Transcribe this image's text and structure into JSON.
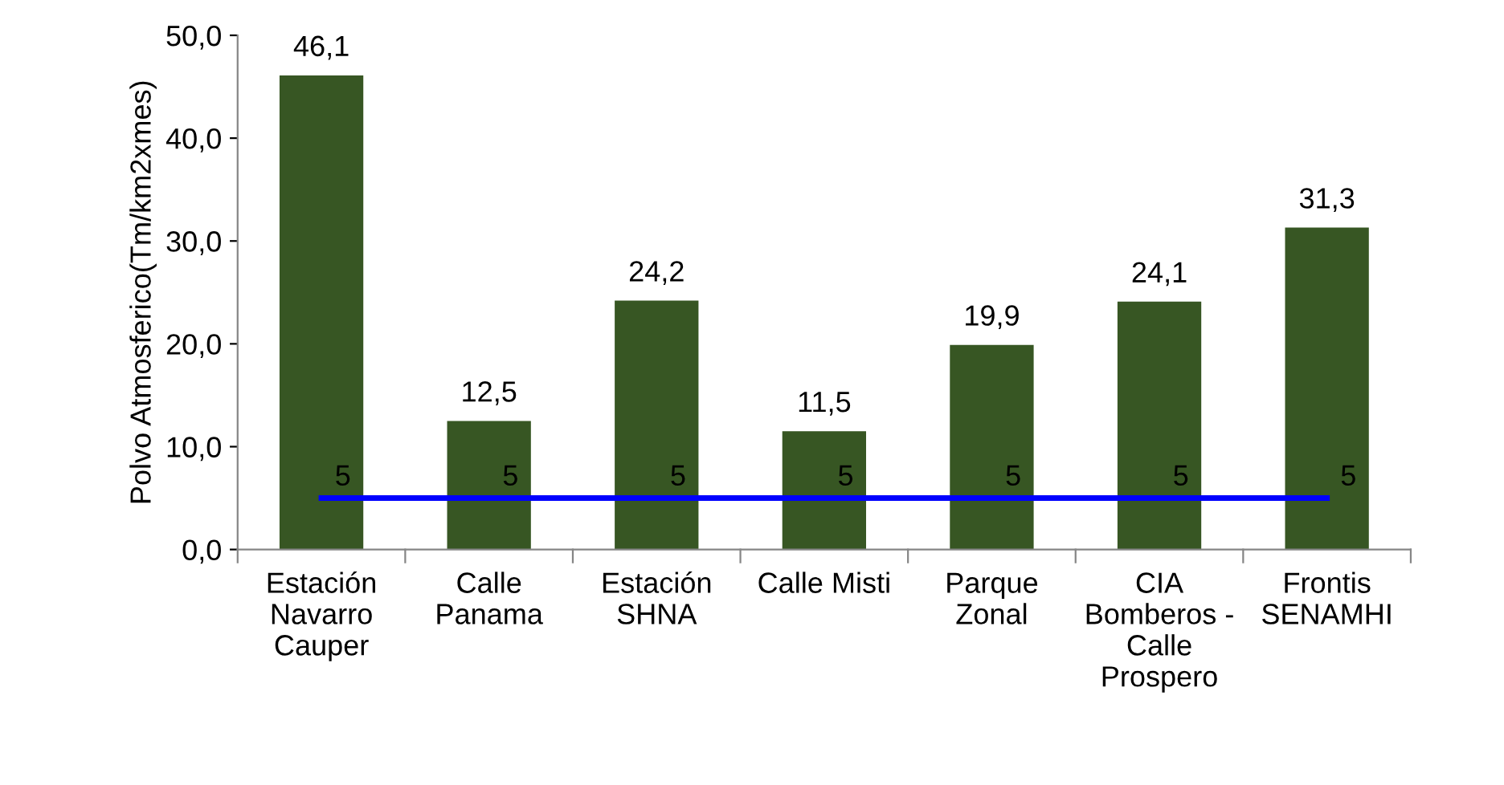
{
  "chart_data": {
    "type": "bar",
    "ylabel": "Polvo Atmosferico(Tm/km2xmes)",
    "categories": [
      "Estación Navarro Cauper",
      "Calle Panama",
      "Estación SHNA",
      "Calle Misti",
      "Parque Zonal",
      "CIA Bomberos - Calle Prospero",
      "Frontis SENAMHI"
    ],
    "series": [
      {
        "color": "#375623",
        "values": [
          46.1,
          12.5,
          24.2,
          11.5,
          19.9,
          24.1,
          31.3
        ],
        "value_labels": [
          "46,1",
          "12,5",
          "24,2",
          "11,5",
          "19,9",
          "24,1",
          "31,3"
        ]
      },
      {
        "type": "line",
        "color": "#0000ff",
        "values": [
          5,
          5,
          5,
          5,
          5,
          5,
          5
        ],
        "value_labels": [
          "5",
          "5",
          "5",
          "5",
          "5",
          "5",
          "5"
        ]
      }
    ],
    "ylim": [
      0,
      50
    ],
    "yticks": [
      {
        "value": 0,
        "label": "0,0"
      },
      {
        "value": 10,
        "label": "10,0"
      },
      {
        "value": 20,
        "label": "20,0"
      },
      {
        "value": 30,
        "label": "30,0"
      },
      {
        "value": 40,
        "label": "40,0"
      },
      {
        "value": 50,
        "label": "50,0"
      }
    ],
    "grid": false,
    "legend": false,
    "marker": "none"
  }
}
